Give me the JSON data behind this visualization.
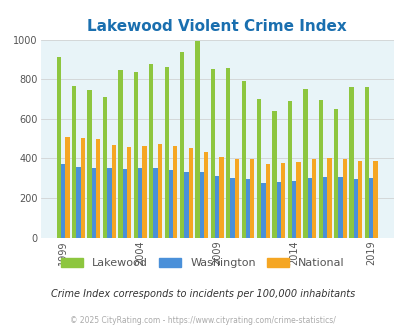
{
  "title": "Lakewood Violent Crime Index",
  "title_color": "#1a6faf",
  "subtitle": "Crime Index corresponds to incidents per 100,000 inhabitants",
  "footnote": "© 2025 CityRating.com - https://www.cityrating.com/crime-statistics/",
  "years": [
    1999,
    2000,
    2001,
    2002,
    2003,
    2004,
    2005,
    2006,
    2007,
    2008,
    2009,
    2010,
    2011,
    2012,
    2013,
    2014,
    2015,
    2016,
    2017,
    2018,
    2019
  ],
  "lakewood": [
    910,
    765,
    745,
    710,
    845,
    835,
    875,
    860,
    935,
    995,
    850,
    855,
    790,
    700,
    640,
    690,
    750,
    695,
    650,
    760,
    760
  ],
  "washington": [
    370,
    355,
    350,
    350,
    345,
    350,
    350,
    340,
    330,
    330,
    310,
    300,
    295,
    275,
    280,
    285,
    300,
    305,
    305,
    295,
    300
  ],
  "national": [
    510,
    505,
    500,
    470,
    460,
    465,
    475,
    465,
    455,
    430,
    405,
    395,
    395,
    370,
    375,
    380,
    395,
    400,
    395,
    385,
    385
  ],
  "color_lakewood": "#8dc63f",
  "color_washington": "#4a90d9",
  "color_national": "#f5a623",
  "bg_color": "#e8f4f8",
  "ylim": [
    0,
    1000
  ],
  "yticks": [
    0,
    200,
    400,
    600,
    800,
    1000
  ],
  "xtick_years": [
    1999,
    2004,
    2009,
    2014,
    2019
  ],
  "legend_labels": [
    "Lakewood",
    "Washington",
    "National"
  ],
  "legend_colors": [
    "#8dc63f",
    "#4a90d9",
    "#f5a623"
  ]
}
